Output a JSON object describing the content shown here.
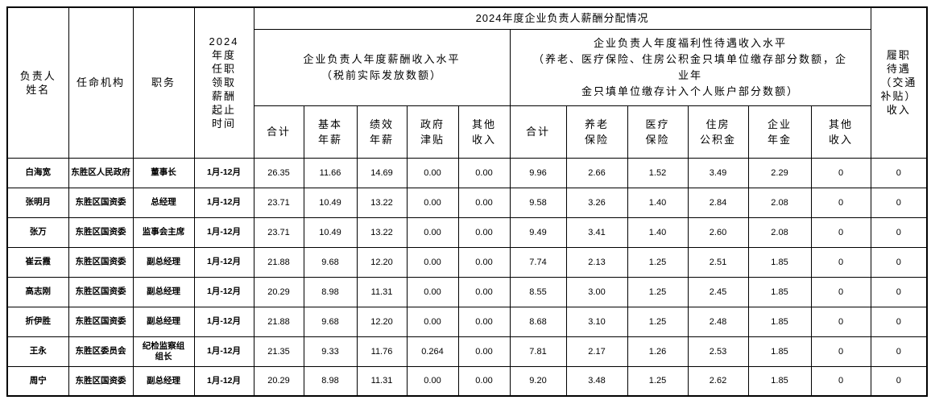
{
  "table": {
    "header": {
      "col_name": "负责人\n姓名",
      "col_agency": "任命机构",
      "col_position": "职务",
      "col_period": "2024\n年度\n任职\n领取\n薪酬\n起止\n时间",
      "span_title": "2024年度企业负责人薪酬分配情况",
      "group_salary": "企业负责人年度薪酬收入水平\n（税前实际发放数额）",
      "group_welfare": "企业负责人年度福利性待遇收入水平\n（养老、医疗保险、住房公积金只填单位缴存部分数额，企\n业年\n金只填单位缴存计入个人账户部分数额）",
      "col_duty_allowance": "履职\n待遇\n（交通\n补贴）\n收入",
      "sub_columns": [
        "合计",
        "基本\n年薪",
        "绩效\n年薪",
        "政府\n津贴",
        "其他\n收入",
        "合计",
        "养老\n保险",
        "医疗\n保险",
        "住房\n公积金",
        "企业\n年金",
        "其他\n收入"
      ]
    },
    "rows": [
      {
        "name": "白海宽",
        "agency": "东胜区人民政府",
        "position": "董事长",
        "period": "1月-12月",
        "values": [
          "26.35",
          "11.66",
          "14.69",
          "0.00",
          "0.00",
          "9.96",
          "2.66",
          "1.52",
          "3.49",
          "2.29",
          "0",
          "0"
        ]
      },
      {
        "name": "张明月",
        "agency": "东胜区国资委",
        "position": "总经理",
        "period": "1月-12月",
        "values": [
          "23.71",
          "10.49",
          "13.22",
          "0.00",
          "0.00",
          "9.58",
          "3.26",
          "1.40",
          "2.84",
          "2.08",
          "0",
          "0"
        ]
      },
      {
        "name": "张万",
        "agency": "东胜区国资委",
        "position": "监事会主席",
        "period": "1月-12月",
        "values": [
          "23.71",
          "10.49",
          "13.22",
          "0.00",
          "0.00",
          "9.49",
          "3.41",
          "1.40",
          "2.60",
          "2.08",
          "0",
          "0"
        ]
      },
      {
        "name": "崔云霞",
        "agency": "东胜区国资委",
        "position": "副总经理",
        "period": "1月-12月",
        "values": [
          "21.88",
          "9.68",
          "12.20",
          "0.00",
          "0.00",
          "7.74",
          "2.13",
          "1.25",
          "2.51",
          "1.85",
          "0",
          "0"
        ]
      },
      {
        "name": "高志刚",
        "agency": "东胜区国资委",
        "position": "副总经理",
        "period": "1月-12月",
        "values": [
          "20.29",
          "8.98",
          "11.31",
          "0.00",
          "0.00",
          "8.55",
          "3.00",
          "1.25",
          "2.45",
          "1.85",
          "0",
          "0"
        ]
      },
      {
        "name": "折伊胜",
        "agency": "东胜区国资委",
        "position": "副总经理",
        "period": "1月-12月",
        "values": [
          "21.88",
          "9.68",
          "12.20",
          "0.00",
          "0.00",
          "8.68",
          "3.10",
          "1.25",
          "2.48",
          "1.85",
          "0",
          "0"
        ]
      },
      {
        "name": "王永",
        "agency": "东胜区委员会",
        "position": "纪检监察组\n组长",
        "period": "1月-12月",
        "values": [
          "21.35",
          "9.33",
          "11.76",
          "0.264",
          "0.00",
          "7.81",
          "2.17",
          "1.26",
          "2.53",
          "1.85",
          "0",
          "0"
        ]
      },
      {
        "name": "周宁",
        "agency": "东胜区国资委",
        "position": "副总经理",
        "period": "1月-12月",
        "values": [
          "20.29",
          "8.98",
          "11.31",
          "0.00",
          "0.00",
          "9.20",
          "3.48",
          "1.25",
          "2.62",
          "1.85",
          "0",
          "0"
        ]
      }
    ]
  }
}
